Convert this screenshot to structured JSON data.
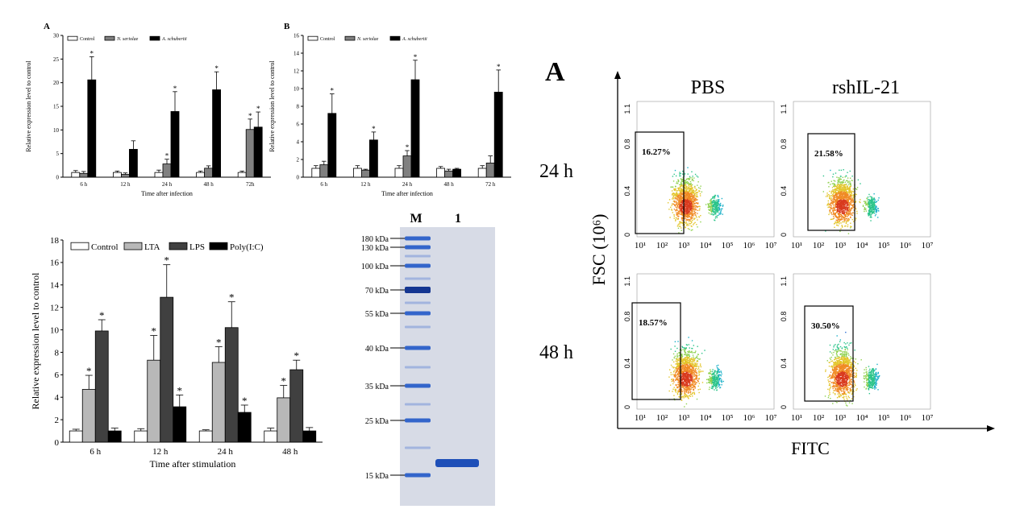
{
  "panels": {
    "chartA": {
      "panel_label": "A"
    },
    "chartB": {
      "panel_label": "B"
    },
    "flow": {
      "panel_label": "A"
    }
  },
  "chart_data": [
    {
      "type": "bar",
      "panel": "A",
      "title": "",
      "xlabel": "Time after infection",
      "ylabel": "Relative expression level to control",
      "ylim": [
        0,
        30
      ],
      "yticks": [
        "0",
        "5",
        "10",
        "15",
        "20",
        "25",
        "30"
      ],
      "categories": [
        "6 h",
        "12 h",
        "24 h",
        "48 h",
        "72h"
      ],
      "legend_position": "top-left",
      "series": [
        {
          "name": "Control",
          "color": "#ffffff",
          "values": [
            1.0,
            1.0,
            1.0,
            1.0,
            1.0
          ],
          "errors": [
            0.4,
            0.3,
            0.5,
            0.3,
            0.3
          ],
          "sig": [
            false,
            false,
            false,
            false,
            false
          ]
        },
        {
          "name": "N. seriolae",
          "color": "#808080",
          "values": [
            0.8,
            0.6,
            2.8,
            1.9,
            10.1
          ],
          "errors": [
            0.4,
            0.3,
            1.0,
            0.5,
            2.2
          ],
          "sig": [
            false,
            false,
            true,
            false,
            true
          ]
        },
        {
          "name": "A. schubertii",
          "color": "#000000",
          "values": [
            20.6,
            5.9,
            13.9,
            18.5,
            10.6
          ],
          "errors": [
            4.9,
            1.8,
            4.2,
            3.8,
            3.2
          ],
          "sig": [
            true,
            false,
            true,
            true,
            true
          ]
        }
      ]
    },
    {
      "type": "bar",
      "panel": "B",
      "title": "",
      "xlabel": "Time after infection",
      "ylabel": "Relative expression level to control",
      "ylim": [
        0,
        16
      ],
      "yticks": [
        "0",
        "2",
        "4",
        "6",
        "8",
        "10",
        "12",
        "14",
        "16"
      ],
      "categories": [
        "6 h",
        "12 h",
        "24 h",
        "48 h",
        "72 h"
      ],
      "legend_position": "top-left",
      "series": [
        {
          "name": "Control",
          "color": "#ffffff",
          "values": [
            1.0,
            1.0,
            1.0,
            1.0,
            1.0
          ],
          "errors": [
            0.3,
            0.3,
            0.3,
            0.2,
            0.3
          ],
          "sig": [
            false,
            false,
            false,
            false,
            false
          ]
        },
        {
          "name": "N. seriolae",
          "color": "#808080",
          "values": [
            1.4,
            0.8,
            2.4,
            0.7,
            1.6
          ],
          "errors": [
            0.4,
            0.1,
            0.6,
            0.2,
            0.8
          ],
          "sig": [
            false,
            false,
            true,
            false,
            false
          ]
        },
        {
          "name": "A. schubertii",
          "color": "#000000",
          "values": [
            7.2,
            4.2,
            11.0,
            0.9,
            9.6
          ],
          "errors": [
            2.2,
            0.9,
            2.2,
            0.1,
            2.5
          ],
          "sig": [
            true,
            true,
            true,
            false,
            true
          ]
        }
      ]
    },
    {
      "type": "bar",
      "panel": "C",
      "title": "",
      "xlabel": "Time after stimulation",
      "ylabel": "Relative expression level to control",
      "ylim": [
        0,
        18
      ],
      "yticks": [
        "0",
        "2",
        "4",
        "6",
        "8",
        "10",
        "12",
        "14",
        "16",
        "18"
      ],
      "categories": [
        "6 h",
        "12 h",
        "24 h",
        "48 h"
      ],
      "legend_position": "top",
      "series": [
        {
          "name": "Control",
          "color": "#ffffff",
          "values": [
            1.0,
            1.0,
            1.0,
            1.0
          ],
          "errors": [
            0.15,
            0.2,
            0.1,
            0.25
          ],
          "sig": [
            false,
            false,
            false,
            false
          ]
        },
        {
          "name": "LTA",
          "color": "#b8b8b8",
          "values": [
            4.7,
            7.3,
            7.1,
            3.95
          ],
          "errors": [
            1.25,
            2.2,
            1.4,
            1.1
          ],
          "sig": [
            true,
            true,
            true,
            true
          ]
        },
        {
          "name": "LPS",
          "color": "#404040",
          "values": [
            9.9,
            12.9,
            10.2,
            6.45
          ],
          "errors": [
            1.0,
            2.9,
            2.3,
            0.85
          ],
          "sig": [
            true,
            true,
            true,
            true
          ]
        },
        {
          "name": "Poly(I:C)",
          "color": "#000000",
          "values": [
            1.0,
            3.15,
            2.65,
            1.0
          ],
          "errors": [
            0.25,
            1.05,
            0.65,
            0.3
          ],
          "sig": [
            false,
            true,
            true,
            false
          ]
        }
      ]
    },
    {
      "type": "scatter",
      "panel": "flow",
      "title": "",
      "xlabel": "FITC",
      "ylabel": "FSC (10⁶)",
      "columns": [
        "PBS",
        "rshIL-21"
      ],
      "rows": [
        "24 h",
        "48 h"
      ],
      "x_ticks": [
        "10¹",
        "10²",
        "10³",
        "10⁴",
        "10⁵",
        "10⁶",
        "10⁷"
      ],
      "y_ticks": [
        "0",
        "0.4",
        "0.8",
        "1.1"
      ],
      "gated_percent": [
        [
          "16.27%",
          "21.58%"
        ],
        [
          "18.57%",
          "30.50%"
        ]
      ]
    }
  ],
  "gel": {
    "lane_labels": [
      "M",
      "1"
    ],
    "markers": [
      "180 kDa",
      "130 kDa",
      "100 kDa",
      "70 kDa",
      "55 kDa",
      "40 kDa",
      "35 kDa",
      "25 kDa",
      "15 kDa"
    ]
  }
}
